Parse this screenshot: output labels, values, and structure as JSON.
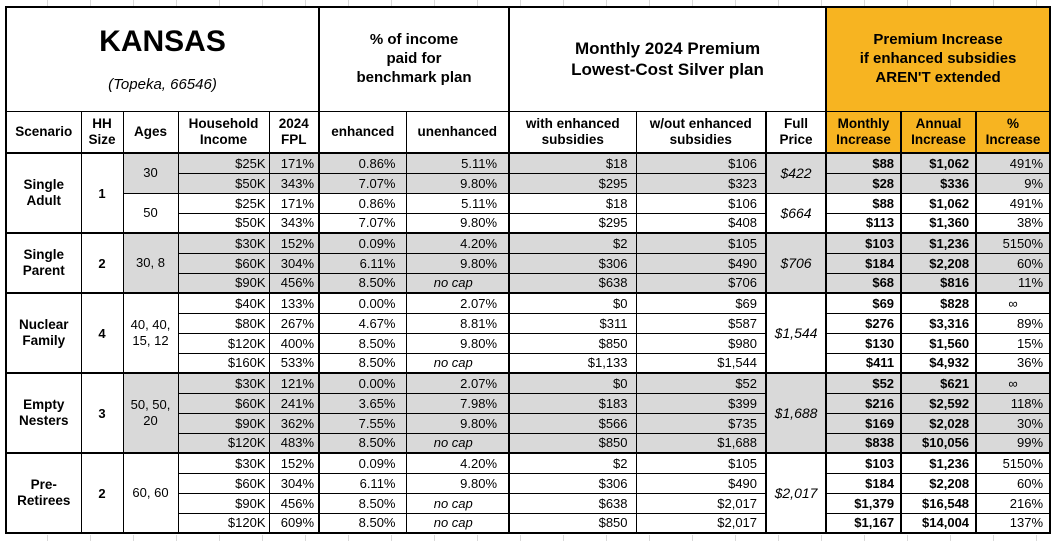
{
  "title": {
    "region": "KANSAS",
    "location": "(Topeka, 66546)"
  },
  "colors": {
    "accent_orange": "#F7B421",
    "row_shade": "#D9D9D9",
    "border": "#000000"
  },
  "header": {
    "group_pct_income": "% of income\npaid for\nbenchmark plan",
    "group_premium": "Monthly 2024 Premium\nLowest-Cost Silver plan",
    "group_increase": "Premium Increase\nif enhanced subsidies\nAREN'T extended",
    "scenario": "Scenario",
    "hh_size": "HH\nSize",
    "ages": "Ages",
    "income": "Household\nIncome",
    "fpl": "2024\nFPL",
    "enhanced": "enhanced",
    "unenhanced": "unenhanced",
    "with_subsidies": "with enhanced\nsubsidies",
    "without_subsidies": "w/out enhanced\nsubsidies",
    "full_price": "Full\nPrice",
    "monthly_increase": "Monthly\nIncrease",
    "annual_increase": "Annual\nIncrease",
    "pct_increase": "%\nIncrease"
  },
  "chart_data": {
    "type": "table",
    "columns": [
      "Scenario",
      "HH Size",
      "Ages",
      "Household Income",
      "2024 FPL",
      "enhanced % of income",
      "unenhanced % of income",
      "premium with enhanced subsidies",
      "premium w/out enhanced subsidies",
      "Full Price",
      "Monthly Increase",
      "Annual Increase",
      "% Increase"
    ],
    "groups": [
      {
        "scenario": "Single\nAdult",
        "hh_size": "1",
        "subgroups": [
          {
            "ages": "30",
            "full_price": "$422",
            "shaded": true,
            "rows": [
              [
                "$25K",
                "171%",
                "0.86%",
                "5.11%",
                "$18",
                "$106",
                "$88",
                "$1,062",
                "491%"
              ],
              [
                "$50K",
                "343%",
                "7.07%",
                "9.80%",
                "$295",
                "$323",
                "$28",
                "$336",
                "9%"
              ]
            ]
          },
          {
            "ages": "50",
            "full_price": "$664",
            "shaded": false,
            "rows": [
              [
                "$25K",
                "171%",
                "0.86%",
                "5.11%",
                "$18",
                "$106",
                "$88",
                "$1,062",
                "491%"
              ],
              [
                "$50K",
                "343%",
                "7.07%",
                "9.80%",
                "$295",
                "$408",
                "$113",
                "$1,360",
                "38%"
              ]
            ]
          }
        ]
      },
      {
        "scenario": "Single\nParent",
        "hh_size": "2",
        "subgroups": [
          {
            "ages": "30, 8",
            "full_price": "$706",
            "shaded": true,
            "rows": [
              [
                "$30K",
                "152%",
                "0.09%",
                "4.20%",
                "$2",
                "$105",
                "$103",
                "$1,236",
                "5150%"
              ],
              [
                "$60K",
                "304%",
                "6.11%",
                "9.80%",
                "$306",
                "$490",
                "$184",
                "$2,208",
                "60%"
              ],
              [
                "$90K",
                "456%",
                "8.50%",
                "no cap",
                "$638",
                "$706",
                "$68",
                "$816",
                "11%"
              ]
            ]
          }
        ]
      },
      {
        "scenario": "Nuclear\nFamily",
        "hh_size": "4",
        "subgroups": [
          {
            "ages": "40, 40,\n15, 12",
            "full_price": "$1,544",
            "shaded": false,
            "rows": [
              [
                "$40K",
                "133%",
                "0.00%",
                "2.07%",
                "$0",
                "$69",
                "$69",
                "$828",
                "∞"
              ],
              [
                "$80K",
                "267%",
                "4.67%",
                "8.81%",
                "$311",
                "$587",
                "$276",
                "$3,316",
                "89%"
              ],
              [
                "$120K",
                "400%",
                "8.50%",
                "9.80%",
                "$850",
                "$980",
                "$130",
                "$1,560",
                "15%"
              ],
              [
                "$160K",
                "533%",
                "8.50%",
                "no cap",
                "$1,133",
                "$1,544",
                "$411",
                "$4,932",
                "36%"
              ]
            ]
          }
        ]
      },
      {
        "scenario": "Empty\nNesters",
        "hh_size": "3",
        "subgroups": [
          {
            "ages": "50, 50,\n20",
            "full_price": "$1,688",
            "shaded": true,
            "rows": [
              [
                "$30K",
                "121%",
                "0.00%",
                "2.07%",
                "$0",
                "$52",
                "$52",
                "$621",
                "∞"
              ],
              [
                "$60K",
                "241%",
                "3.65%",
                "7.98%",
                "$183",
                "$399",
                "$216",
                "$2,592",
                "118%"
              ],
              [
                "$90K",
                "362%",
                "7.55%",
                "9.80%",
                "$566",
                "$735",
                "$169",
                "$2,028",
                "30%"
              ],
              [
                "$120K",
                "483%",
                "8.50%",
                "no cap",
                "$850",
                "$1,688",
                "$838",
                "$10,056",
                "99%"
              ]
            ]
          }
        ]
      },
      {
        "scenario": "Pre-\nRetirees",
        "hh_size": "2",
        "subgroups": [
          {
            "ages": "60, 60",
            "full_price": "$2,017",
            "shaded": false,
            "rows": [
              [
                "$30K",
                "152%",
                "0.09%",
                "4.20%",
                "$2",
                "$105",
                "$103",
                "$1,236",
                "5150%"
              ],
              [
                "$60K",
                "304%",
                "6.11%",
                "9.80%",
                "$306",
                "$490",
                "$184",
                "$2,208",
                "60%"
              ],
              [
                "$90K",
                "456%",
                "8.50%",
                "no cap",
                "$638",
                "$2,017",
                "$1,379",
                "$16,548",
                "216%"
              ],
              [
                "$120K",
                "609%",
                "8.50%",
                "no cap",
                "$850",
                "$2,017",
                "$1,167",
                "$14,004",
                "137%"
              ]
            ]
          }
        ]
      }
    ]
  }
}
